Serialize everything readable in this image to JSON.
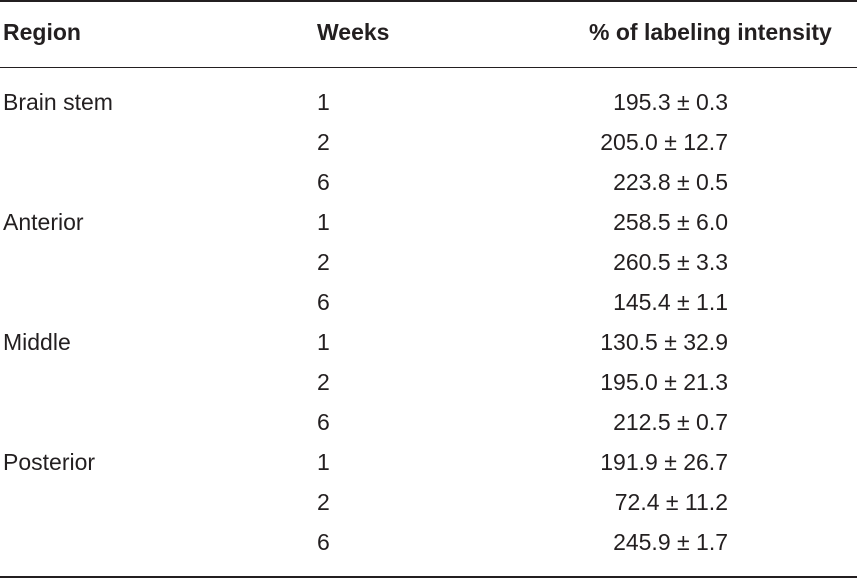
{
  "table": {
    "headers": {
      "region": "Region",
      "weeks": "Weeks",
      "intensity": "% of labeling intensity"
    },
    "rows": [
      {
        "region": "Brain stem",
        "weeks": "1",
        "value": "195.3 ± 0.3"
      },
      {
        "region": "",
        "weeks": "2",
        "value": "205.0 ± 12.7"
      },
      {
        "region": "",
        "weeks": "6",
        "value": "223.8 ± 0.5"
      },
      {
        "region": "Anterior",
        "weeks": "1",
        "value": "258.5 ± 6.0"
      },
      {
        "region": "",
        "weeks": "2",
        "value": "260.5 ± 3.3"
      },
      {
        "region": "",
        "weeks": "6",
        "value": "145.4 ± 1.1"
      },
      {
        "region": "Middle",
        "weeks": "1",
        "value": "130.5 ± 32.9"
      },
      {
        "region": "",
        "weeks": "2",
        "value": "195.0 ± 21.3"
      },
      {
        "region": "",
        "weeks": "6",
        "value": "212.5 ± 0.7"
      },
      {
        "region": "Posterior",
        "weeks": "1",
        "value": "191.9 ± 26.7"
      },
      {
        "region": "",
        "weeks": "2",
        "value": "72.4 ± 11.2"
      },
      {
        "region": "",
        "weeks": "6",
        "value": "245.9 ± 1.7"
      }
    ]
  }
}
